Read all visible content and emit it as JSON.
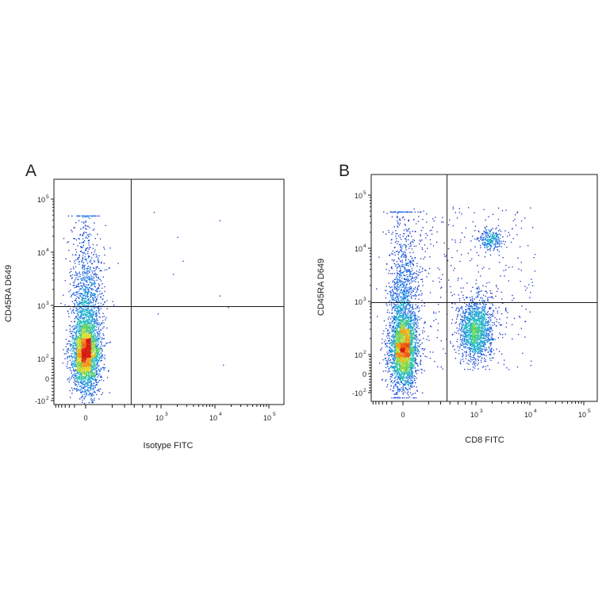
{
  "chart_data": [
    {
      "type": "scatter",
      "panel_label": "A",
      "xlabel": "Isotype FITC",
      "ylabel": "CD45RA D649",
      "x_scale": "biexponential",
      "y_scale": "biexponential",
      "x_ticks": [
        {
          "base": "0",
          "exp": ""
        },
        {
          "base": "10",
          "exp": "3"
        },
        {
          "base": "10",
          "exp": "4"
        },
        {
          "base": "10",
          "exp": "5"
        }
      ],
      "y_ticks": [
        {
          "base": "-10",
          "exp": "2"
        },
        {
          "base": "0",
          "exp": ""
        },
        {
          "base": "10",
          "exp": "2"
        },
        {
          "base": "10",
          "exp": "3"
        },
        {
          "base": "10",
          "exp": "4"
        },
        {
          "base": "10",
          "exp": "5"
        }
      ],
      "quadrant_gate": {
        "x": 400,
        "y": 950
      },
      "populations": [
        {
          "description": "FITC-negative population",
          "x_center": 0,
          "y_range": [
            -100,
            40000
          ],
          "y_mode": 100,
          "density": "high"
        }
      ],
      "colormap": "density (blue-green-yellow-red)"
    },
    {
      "type": "scatter",
      "panel_label": "B",
      "xlabel": "CD8 FITC",
      "ylabel": "CD45RA D649",
      "x_scale": "biexponential",
      "y_scale": "biexponential",
      "x_ticks": [
        {
          "base": "0",
          "exp": ""
        },
        {
          "base": "10",
          "exp": "3"
        },
        {
          "base": "10",
          "exp": "4"
        },
        {
          "base": "10",
          "exp": "5"
        }
      ],
      "y_ticks": [
        {
          "base": "-10",
          "exp": "2"
        },
        {
          "base": "0",
          "exp": ""
        },
        {
          "base": "10",
          "exp": "2"
        },
        {
          "base": "10",
          "exp": "3"
        },
        {
          "base": "10",
          "exp": "4"
        },
        {
          "base": "10",
          "exp": "5"
        }
      ],
      "quadrant_gate": {
        "x": 400,
        "y": 950
      },
      "populations": [
        {
          "description": "CD8-negative population",
          "x_center": 0,
          "y_range": [
            -100,
            40000
          ],
          "y_mode": 100,
          "density": "high"
        },
        {
          "description": "CD8+ CD45RA low/intermediate",
          "x_center": 1000,
          "y_range": [
            50,
            2000
          ],
          "y_mode": 300,
          "density": "medium"
        },
        {
          "description": "CD8+ CD45RA high",
          "x_center": 1800,
          "y_range": [
            8000,
            25000
          ],
          "y_mode": 15000,
          "density": "low"
        }
      ],
      "colormap": "density (blue-green-yellow-red)"
    }
  ]
}
